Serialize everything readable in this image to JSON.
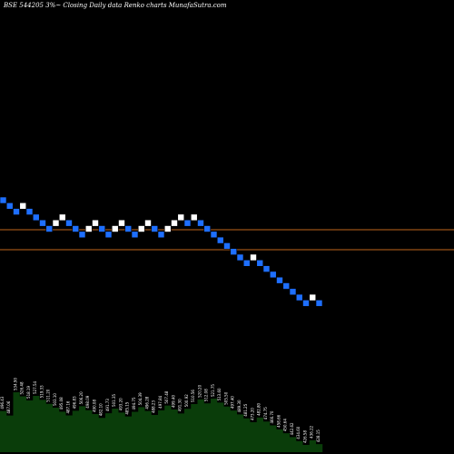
{
  "chart_data": {
    "type": "renko",
    "title": "BSE 544205 3%~  Closing Daily data  Renko  charts MunafaSutra.com",
    "colors": {
      "background": "#000000",
      "up_brick": "#ffffff",
      "down_brick": "#1e6fff",
      "reference_lines": "#c0661c",
      "volume_area": "#0a3d0a",
      "labels": "#ffffff"
    },
    "reference_levels": [
      "upper",
      "lower"
    ],
    "bricks": [
      {
        "dir": "down",
        "level": 0
      },
      {
        "dir": "down",
        "level": -1
      },
      {
        "dir": "down",
        "level": -2
      },
      {
        "dir": "up",
        "level": -1
      },
      {
        "dir": "down",
        "level": -2
      },
      {
        "dir": "down",
        "level": -3
      },
      {
        "dir": "down",
        "level": -4
      },
      {
        "dir": "down",
        "level": -5
      },
      {
        "dir": "up",
        "level": -4
      },
      {
        "dir": "up",
        "level": -3
      },
      {
        "dir": "down",
        "level": -4
      },
      {
        "dir": "down",
        "level": -5
      },
      {
        "dir": "down",
        "level": -6
      },
      {
        "dir": "up",
        "level": -5
      },
      {
        "dir": "up",
        "level": -4
      },
      {
        "dir": "down",
        "level": -5
      },
      {
        "dir": "down",
        "level": -6
      },
      {
        "dir": "up",
        "level": -5
      },
      {
        "dir": "up",
        "level": -4
      },
      {
        "dir": "down",
        "level": -5
      },
      {
        "dir": "down",
        "level": -6
      },
      {
        "dir": "up",
        "level": -5
      },
      {
        "dir": "up",
        "level": -4
      },
      {
        "dir": "down",
        "level": -5
      },
      {
        "dir": "down",
        "level": -6
      },
      {
        "dir": "up",
        "level": -5
      },
      {
        "dir": "up",
        "level": -4
      },
      {
        "dir": "up",
        "level": -3
      },
      {
        "dir": "down",
        "level": -4
      },
      {
        "dir": "up",
        "level": -3
      },
      {
        "dir": "down",
        "level": -4
      },
      {
        "dir": "down",
        "level": -5
      },
      {
        "dir": "down",
        "level": -6
      },
      {
        "dir": "down",
        "level": -7
      },
      {
        "dir": "down",
        "level": -8
      },
      {
        "dir": "down",
        "level": -9
      },
      {
        "dir": "down",
        "level": -10
      },
      {
        "dir": "down",
        "level": -11
      },
      {
        "dir": "up",
        "level": -10
      },
      {
        "dir": "down",
        "level": -11
      },
      {
        "dir": "down",
        "level": -12
      },
      {
        "dir": "down",
        "level": -13
      },
      {
        "dir": "down",
        "level": -14
      },
      {
        "dir": "down",
        "level": -15
      },
      {
        "dir": "down",
        "level": -16
      },
      {
        "dir": "down",
        "level": -17
      },
      {
        "dir": "down",
        "level": -18
      },
      {
        "dir": "up",
        "level": -17
      },
      {
        "dir": "down",
        "level": -18
      }
    ],
    "volume_labels": [
      "496.43",
      "487.06",
      "534.90",
      "526.48",
      "518.19",
      "527.54",
      "519.33",
      "511.20",
      "503.10",
      "495.08",
      "487.16",
      "496.83",
      "506.20",
      "498.09",
      "490.08",
      "482.10",
      "491.73",
      "501.35",
      "493.20",
      "485.15",
      "494.75",
      "504.39",
      "496.28",
      "488.23",
      "497.84",
      "507.48",
      "499.40",
      "491.30",
      "500.92",
      "510.56",
      "520.20",
      "512.08",
      "521.75",
      "513.60",
      "505.50",
      "497.40",
      "489.30",
      "481.25",
      "473.20",
      "482.80",
      "474.75",
      "466.70",
      "458.66",
      "450.64",
      "442.62",
      "434.60",
      "426.58",
      "436.22",
      "428.15"
    ]
  }
}
